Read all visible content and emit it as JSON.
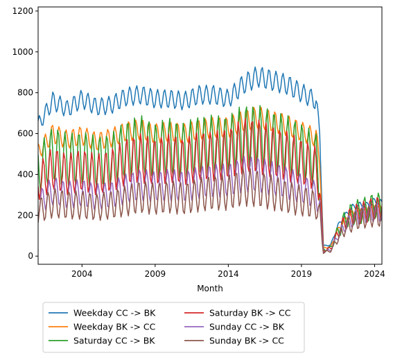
{
  "chart_data": {
    "type": "line",
    "title": "",
    "xlabel": "Month",
    "ylabel": "",
    "xlim": [
      2001.0,
      2024.5
    ],
    "ylim": [
      -40,
      1220
    ],
    "grid": false,
    "legend_placement": "below-left",
    "legend_columns": 2,
    "x_ticks": [
      {
        "value": 2004,
        "label": "2004"
      },
      {
        "value": 2009,
        "label": "2009"
      },
      {
        "value": 2014,
        "label": "2014"
      },
      {
        "value": 2019,
        "label": "2019"
      },
      {
        "value": 2024,
        "label": "2024"
      }
    ],
    "y_ticks": [
      {
        "value": 0,
        "label": "0"
      },
      {
        "value": 200,
        "label": "200"
      },
      {
        "value": 400,
        "label": "400"
      },
      {
        "value": 600,
        "label": "600"
      },
      {
        "value": 800,
        "label": "800"
      },
      {
        "value": 1000,
        "label": "1000"
      },
      {
        "value": 1200,
        "label": "1200"
      }
    ],
    "x": [
      2001.0,
      2002.0,
      2003.0,
      2004.0,
      2005.0,
      2006.0,
      2007.0,
      2008.0,
      2009.0,
      2010.0,
      2011.0,
      2012.0,
      2013.0,
      2014.0,
      2015.0,
      2016.0,
      2017.0,
      2018.0,
      2019.0,
      2020.0,
      2020.25,
      2020.5,
      2021.0,
      2021.5,
      2022.0,
      2022.5,
      2023.0,
      2023.5,
      2024.0,
      2024.5
    ],
    "series": [
      {
        "name": "Weekday CC -> BK",
        "color": "#1f77b4",
        "values": [
          640,
          760,
          720,
          770,
          730,
          740,
          780,
          790,
          770,
          770,
          760,
          790,
          790,
          770,
          840,
          880,
          860,
          840,
          800,
          760,
          600,
          50,
          55,
          150,
          200,
          240,
          250,
          250,
          270,
          260
        ]
      },
      {
        "name": "Weekday BK -> CC",
        "color": "#ff7f0e",
        "values": [
          510,
          600,
          570,
          590,
          560,
          580,
          610,
          620,
          600,
          610,
          600,
          620,
          630,
          630,
          660,
          680,
          660,
          640,
          610,
          580,
          470,
          40,
          45,
          130,
          180,
          210,
          220,
          225,
          240,
          235
        ]
      },
      {
        "name": "Saturday CC -> BK",
        "color": "#2ca02c",
        "values": [
          420,
          500,
          470,
          480,
          460,
          470,
          520,
          540,
          510,
          530,
          510,
          540,
          540,
          540,
          580,
          580,
          560,
          540,
          510,
          470,
          360,
          30,
          40,
          120,
          180,
          210,
          220,
          230,
          245,
          240
        ]
      },
      {
        "name": "Saturday BK -> CC",
        "color": "#d62728",
        "values": [
          360,
          430,
          400,
          420,
          400,
          420,
          460,
          480,
          460,
          480,
          460,
          490,
          490,
          500,
          540,
          540,
          510,
          490,
          460,
          430,
          330,
          28,
          38,
          115,
          170,
          200,
          210,
          220,
          235,
          230
        ]
      },
      {
        "name": "Sunday CC -> BK",
        "color": "#9467bd",
        "values": [
          260,
          320,
          300,
          310,
          290,
          300,
          330,
          350,
          340,
          350,
          340,
          360,
          370,
          370,
          400,
          400,
          380,
          360,
          330,
          300,
          240,
          22,
          30,
          100,
          150,
          180,
          200,
          205,
          215,
          210
        ]
      },
      {
        "name": "Sunday BK -> CC",
        "color": "#8c564b",
        "values": [
          220,
          260,
          250,
          250,
          240,
          250,
          270,
          290,
          280,
          290,
          280,
          300,
          310,
          310,
          340,
          330,
          310,
          290,
          270,
          250,
          200,
          18,
          26,
          90,
          140,
          165,
          185,
          190,
          200,
          195
        ]
      }
    ],
    "annotations": []
  }
}
